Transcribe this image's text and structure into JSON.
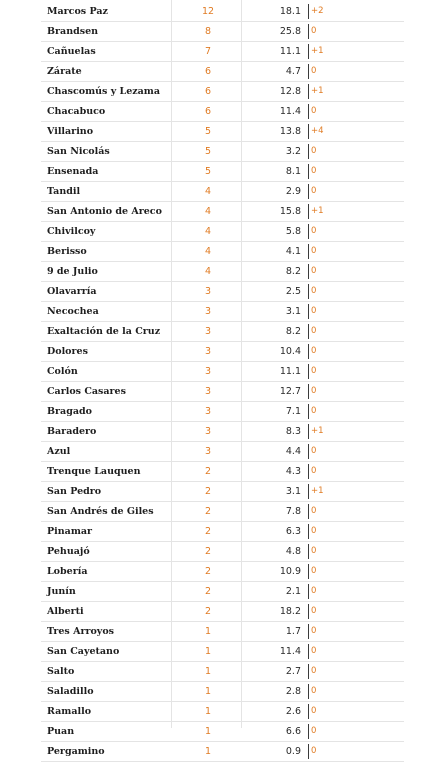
{
  "rows": [
    {
      "name": "Marcos Paz",
      "cases": "12",
      "rate": "18.1",
      "change": "+2"
    },
    {
      "name": "Brandsen",
      "cases": "8",
      "rate": "25.8",
      "change": "0"
    },
    {
      "name": "Cañuelas",
      "cases": "7",
      "rate": "11.1",
      "change": "+1"
    },
    {
      "name": "Zárate",
      "cases": "6",
      "rate": "4.7",
      "change": "0"
    },
    {
      "name": "Chascomús y Lezama",
      "cases": "6",
      "rate": "12.8",
      "change": "+1"
    },
    {
      "name": "Chacabuco",
      "cases": "6",
      "rate": "11.4",
      "change": "0"
    },
    {
      "name": "Villarino",
      "cases": "5",
      "rate": "13.8",
      "change": "+4"
    },
    {
      "name": "San Nicolás",
      "cases": "5",
      "rate": "3.2",
      "change": "0"
    },
    {
      "name": "Ensenada",
      "cases": "5",
      "rate": "8.1",
      "change": "0"
    },
    {
      "name": "Tandil",
      "cases": "4",
      "rate": "2.9",
      "change": "0"
    },
    {
      "name": "San Antonio de Areco",
      "cases": "4",
      "rate": "15.8",
      "change": "+1"
    },
    {
      "name": "Chivilcoy",
      "cases": "4",
      "rate": "5.8",
      "change": "0"
    },
    {
      "name": "Berisso",
      "cases": "4",
      "rate": "4.1",
      "change": "0"
    },
    {
      "name": "9 de Julio",
      "cases": "4",
      "rate": "8.2",
      "change": "0"
    },
    {
      "name": "Olavarría",
      "cases": "3",
      "rate": "2.5",
      "change": "0"
    },
    {
      "name": "Necochea",
      "cases": "3",
      "rate": "3.1",
      "change": "0"
    },
    {
      "name": "Exaltación de la Cruz",
      "cases": "3",
      "rate": "8.2",
      "change": "0"
    },
    {
      "name": "Dolores",
      "cases": "3",
      "rate": "10.4",
      "change": "0"
    },
    {
      "name": "Colón",
      "cases": "3",
      "rate": "11.1",
      "change": "0"
    },
    {
      "name": "Carlos Casares",
      "cases": "3",
      "rate": "12.7",
      "change": "0"
    },
    {
      "name": "Bragado",
      "cases": "3",
      "rate": "7.1",
      "change": "0"
    },
    {
      "name": "Baradero",
      "cases": "3",
      "rate": "8.3",
      "change": "+1"
    },
    {
      "name": "Azul",
      "cases": "3",
      "rate": "4.4",
      "change": "0"
    },
    {
      "name": "Trenque Lauquen",
      "cases": "2",
      "rate": "4.3",
      "change": "0"
    },
    {
      "name": "San Pedro",
      "cases": "2",
      "rate": "3.1",
      "change": "+1"
    },
    {
      "name": "San Andrés de Giles",
      "cases": "2",
      "rate": "7.8",
      "change": "0"
    },
    {
      "name": "Pinamar",
      "cases": "2",
      "rate": "6.3",
      "change": "0"
    },
    {
      "name": "Pehuajó",
      "cases": "2",
      "rate": "4.8",
      "change": "0"
    },
    {
      "name": "Lobería",
      "cases": "2",
      "rate": "10.9",
      "change": "0"
    },
    {
      "name": "Junín",
      "cases": "2",
      "rate": "2.1",
      "change": "0"
    },
    {
      "name": "Alberti",
      "cases": "2",
      "rate": "18.2",
      "change": "0"
    },
    {
      "name": "Tres Arroyos",
      "cases": "1",
      "rate": "1.7",
      "change": "0"
    },
    {
      "name": "San Cayetano",
      "cases": "1",
      "rate": "11.4",
      "change": "0"
    },
    {
      "name": "Salto",
      "cases": "1",
      "rate": "2.7",
      "change": "0"
    },
    {
      "name": "Saladillo",
      "cases": "1",
      "rate": "2.8",
      "change": "0"
    },
    {
      "name": "Ramallo",
      "cases": "1",
      "rate": "2.6",
      "change": "0"
    },
    {
      "name": "Puan",
      "cases": "1",
      "rate": "6.6",
      "change": "0"
    },
    {
      "name": "Pergamino",
      "cases": "1",
      "rate": "0.9",
      "change": "0"
    }
  ]
}
